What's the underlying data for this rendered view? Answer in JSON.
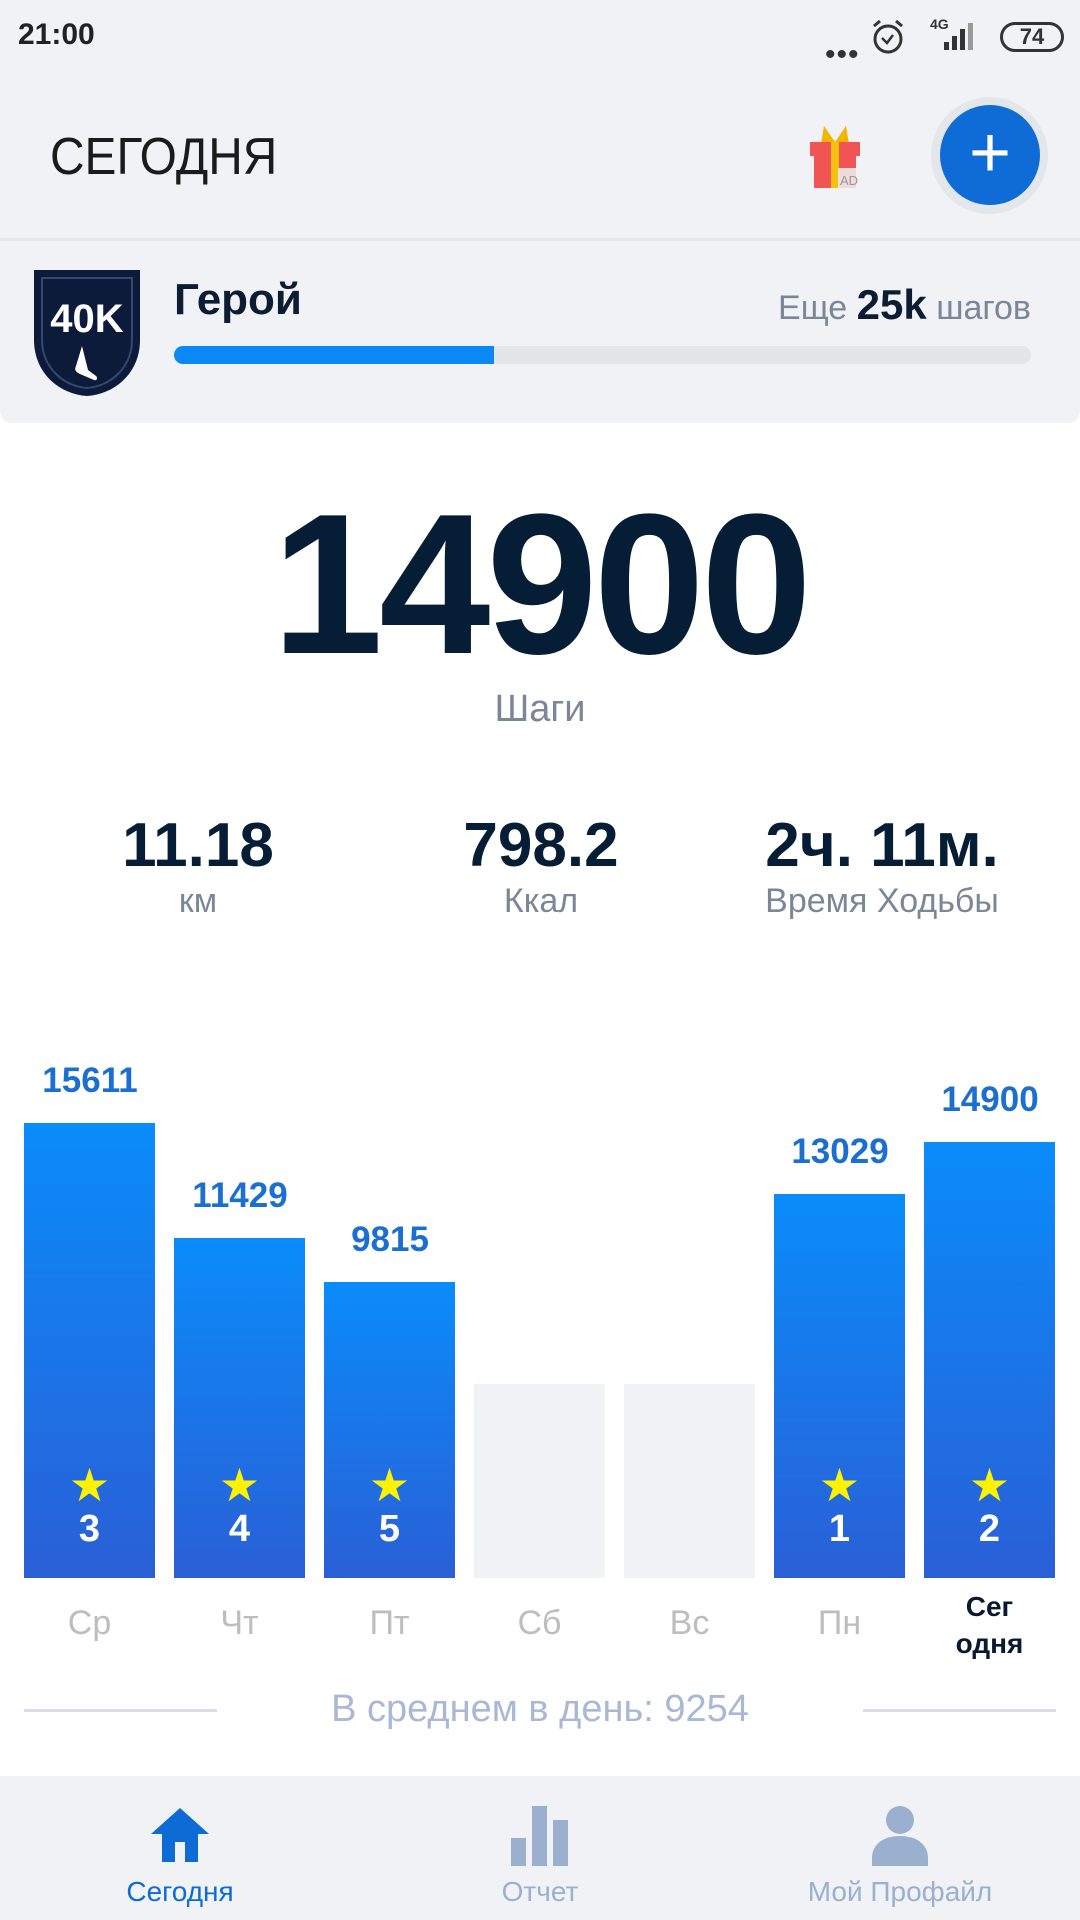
{
  "status_bar": {
    "time": "21:00",
    "network": "4G",
    "battery": "74"
  },
  "header": {
    "title": "СЕГОДНЯ",
    "gift_badge": "AD",
    "add_icon": "plus-icon"
  },
  "level": {
    "badge_text": "40K",
    "name": "Герой",
    "remaining_prefix": "Еще",
    "remaining_value": "25k",
    "remaining_suffix": "шагов",
    "progress_fraction": 0.373
  },
  "today": {
    "steps": "14900",
    "steps_label": "Шаги"
  },
  "stats": [
    {
      "value": "11.18",
      "label": "км"
    },
    {
      "value": "798.2",
      "label": "Ккал"
    },
    {
      "value": "2ч. 11м.",
      "label": "Время Ходьбы"
    }
  ],
  "chart_data": {
    "type": "bar",
    "categories": [
      "Ср",
      "Чт",
      "Пт",
      "Сб",
      "Вс",
      "Пн",
      "Сегодня"
    ],
    "category_labels": [
      "Ср",
      "Чт",
      "Пт",
      "Сб",
      "Вс",
      "Пн",
      "Сег\nодня"
    ],
    "values": [
      15611,
      11429,
      9815,
      null,
      null,
      13029,
      14900
    ],
    "value_labels": [
      "15611",
      "11429",
      "9815",
      "",
      "",
      "13029",
      "14900"
    ],
    "star_counts": [
      "3",
      "4",
      "5",
      "",
      "",
      "1",
      "2"
    ],
    "colors": {
      "bar_top": "#0a8cfa",
      "bar_bottom": "#2a5fd6",
      "empty": "#f0f2f5",
      "value_label": "#1a6fd0",
      "star": "#fff200"
    }
  },
  "average": {
    "text": "В среднем в день: 9254"
  },
  "nav": [
    {
      "label": "Сегодня",
      "icon": "home-icon",
      "active": true
    },
    {
      "label": "Отчет",
      "icon": "bar-chart-icon",
      "active": false
    },
    {
      "label": "Мой Профайл",
      "icon": "user-icon",
      "active": false
    }
  ],
  "colors": {
    "accent": "#0f6cd6",
    "text_dark": "#061d36",
    "muted": "#7b8797",
    "nav_inactive": "#9bb0cf"
  }
}
